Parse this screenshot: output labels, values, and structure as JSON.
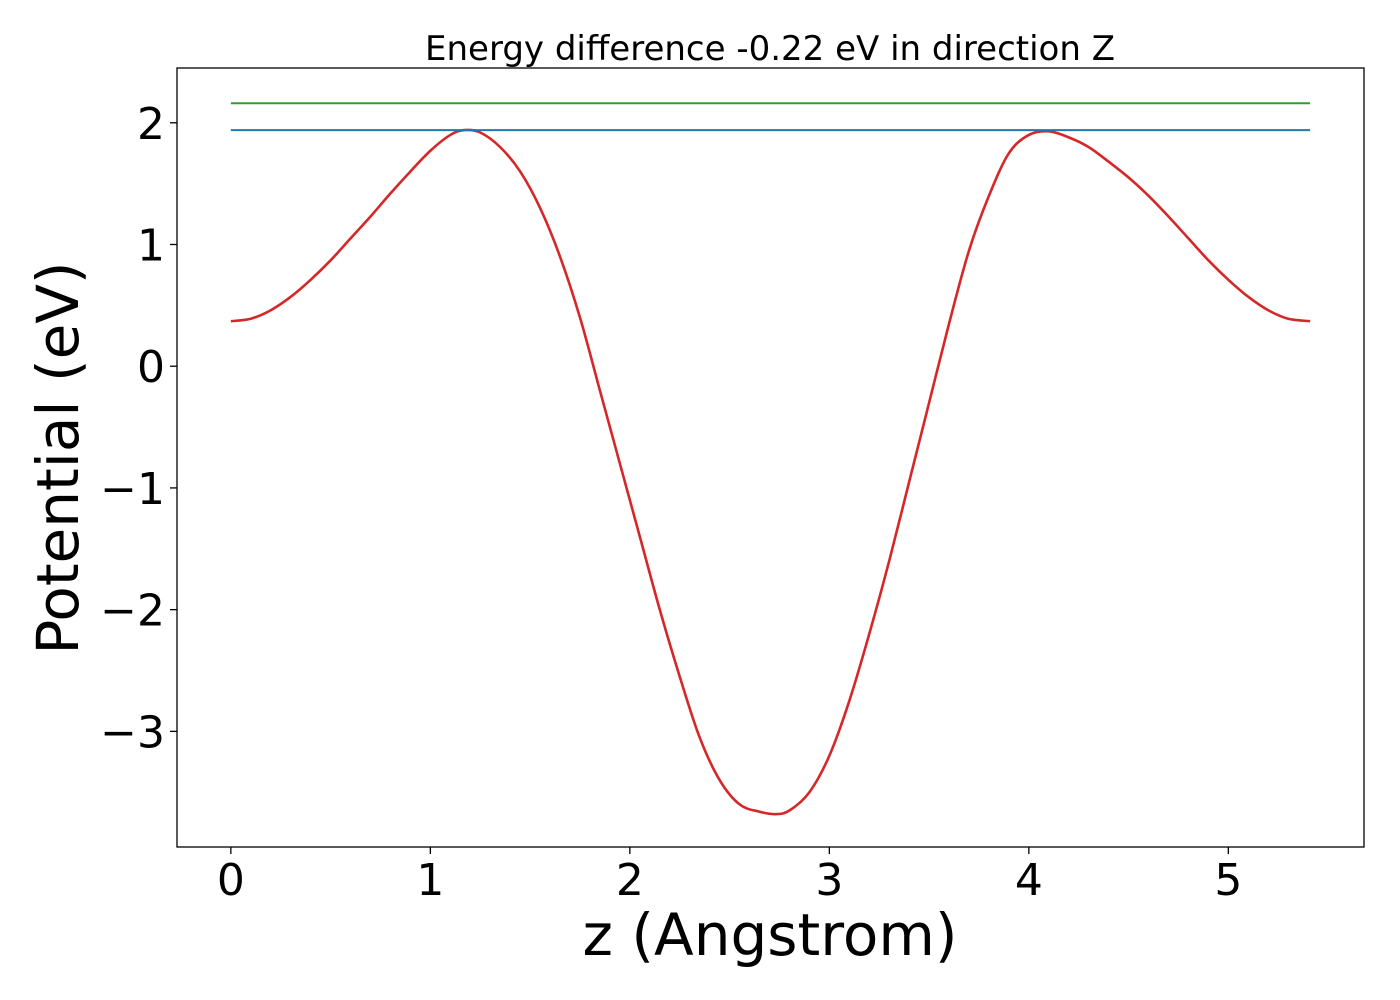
{
  "chart_data": {
    "type": "line",
    "title": "Energy difference -0.22 eV in direction Z",
    "xlabel": "z (Angstrom)",
    "ylabel": "Potential (eV)",
    "xlim": [
      -0.27,
      5.68
    ],
    "ylim": [
      -3.95,
      2.45
    ],
    "xticks": [
      {
        "value": 0,
        "label": "0"
      },
      {
        "value": 1,
        "label": "1"
      },
      {
        "value": 2,
        "label": "2"
      },
      {
        "value": 3,
        "label": "3"
      },
      {
        "value": 4,
        "label": "4"
      },
      {
        "value": 5,
        "label": "5"
      }
    ],
    "yticks": [
      {
        "value": -3,
        "label": "−3"
      },
      {
        "value": -2,
        "label": "−2"
      },
      {
        "value": -1,
        "label": "−1"
      },
      {
        "value": 0,
        "label": "0"
      },
      {
        "value": 1,
        "label": "1"
      },
      {
        "value": 2,
        "label": "2"
      }
    ],
    "grid": false,
    "series": [
      {
        "color": "#d62728",
        "kind": "curve",
        "x": [
          0.0,
          0.1,
          0.2,
          0.3,
          0.4,
          0.5,
          0.6,
          0.7,
          0.8,
          0.9,
          1.0,
          1.1,
          1.17,
          1.25,
          1.35,
          1.45,
          1.55,
          1.65,
          1.75,
          1.85,
          1.95,
          2.05,
          2.15,
          2.25,
          2.35,
          2.45,
          2.55,
          2.65,
          2.73,
          2.8,
          2.9,
          3.0,
          3.1,
          3.2,
          3.3,
          3.4,
          3.5,
          3.6,
          3.7,
          3.8,
          3.9,
          4.0,
          4.1,
          4.2,
          4.3,
          4.4,
          4.5,
          4.6,
          4.7,
          4.8,
          4.9,
          5.0,
          5.1,
          5.2,
          5.3,
          5.41
        ],
        "y": [
          0.37,
          0.39,
          0.46,
          0.57,
          0.71,
          0.87,
          1.05,
          1.23,
          1.42,
          1.6,
          1.77,
          1.9,
          1.94,
          1.92,
          1.8,
          1.6,
          1.3,
          0.9,
          0.4,
          -0.2,
          -0.8,
          -1.4,
          -2.0,
          -2.55,
          -3.05,
          -3.4,
          -3.6,
          -3.66,
          -3.68,
          -3.65,
          -3.5,
          -3.2,
          -2.75,
          -2.2,
          -1.6,
          -0.95,
          -0.3,
          0.35,
          0.95,
          1.4,
          1.75,
          1.9,
          1.93,
          1.88,
          1.8,
          1.68,
          1.55,
          1.4,
          1.23,
          1.05,
          0.87,
          0.71,
          0.57,
          0.46,
          0.39,
          0.37
        ]
      },
      {
        "color": "#1f77b4",
        "kind": "level",
        "x": [
          0.0,
          5.41
        ],
        "y": [
          1.94,
          1.94
        ]
      },
      {
        "color": "#2ca02c",
        "kind": "level",
        "x": [
          0.0,
          5.41
        ],
        "y": [
          2.16,
          2.16
        ]
      }
    ]
  }
}
